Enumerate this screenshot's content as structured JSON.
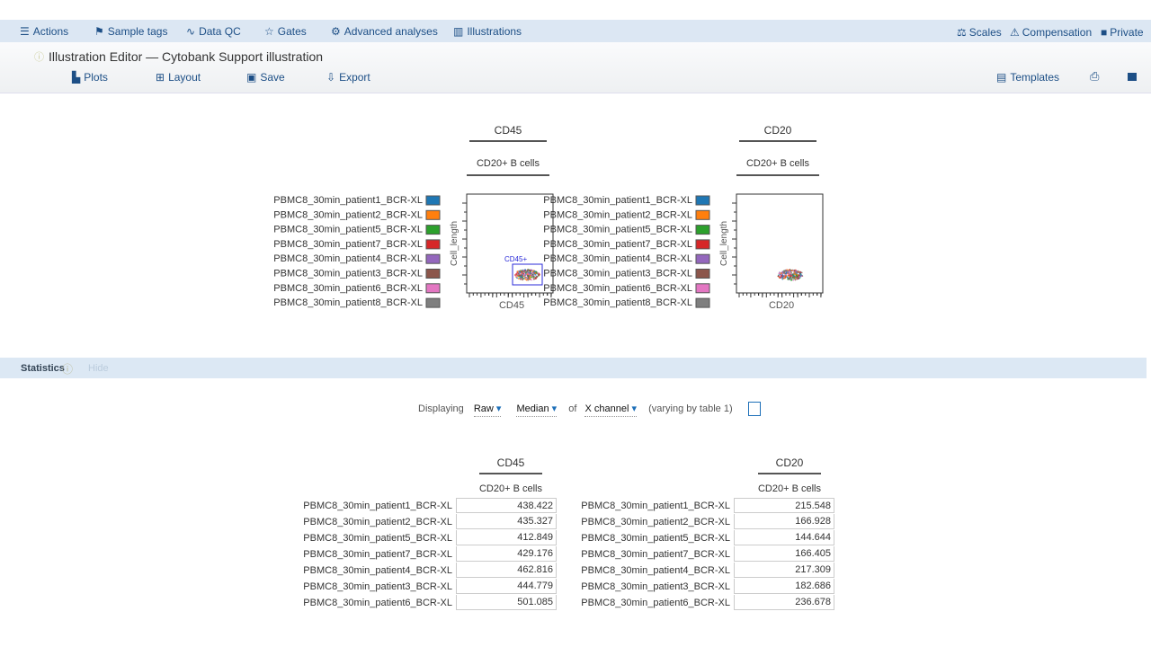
{
  "nav": {
    "items": [
      "Actions",
      "Sample tags",
      "Data QC",
      "Gates",
      "Advanced analyses",
      "Illustrations"
    ],
    "right_items": [
      "Scales",
      "Compensation",
      "Private"
    ]
  },
  "editor": {
    "title": "Illustration Editor — Cytobank Support illustration",
    "toolbar": [
      "Plots",
      "Layout",
      "Save",
      "Export"
    ],
    "templates": "Templates"
  },
  "legend": [
    {
      "label": "PBMC8_30min_patient1_BCR-XL",
      "color": "#1f77b4"
    },
    {
      "label": "PBMC8_30min_patient2_BCR-XL",
      "color": "#ff7f0e"
    },
    {
      "label": "PBMC8_30min_patient5_BCR-XL",
      "color": "#2ca02c"
    },
    {
      "label": "PBMC8_30min_patient7_BCR-XL",
      "color": "#d62728"
    },
    {
      "label": "PBMC8_30min_patient4_BCR-XL",
      "color": "#9467bd"
    },
    {
      "label": "PBMC8_30min_patient3_BCR-XL",
      "color": "#8c564b"
    },
    {
      "label": "PBMC8_30min_patient6_BCR-XL",
      "color": "#e377c2"
    },
    {
      "label": "PBMC8_30min_patient8_BCR-XL",
      "color": "#7f7f7f"
    }
  ],
  "plots": [
    {
      "channel": "CD45",
      "population": "CD20+ B cells",
      "y_label": "Cell_length",
      "x_label": "CD45",
      "gate_label": "CD45+"
    },
    {
      "channel": "CD20",
      "population": "CD20+ B cells",
      "y_label": "Cell_length",
      "x_label": "CD20"
    }
  ],
  "statistics": {
    "title": "Statistics",
    "hide": "Hide",
    "controls": {
      "displaying": "Displaying",
      "mode": "Raw",
      "statistic": "Median",
      "of": "of",
      "channel": "X channel",
      "note": "(varying by table 1)"
    },
    "tables": [
      {
        "channel": "CD45",
        "population": "CD20+ B cells",
        "rows": [
          {
            "sample": "PBMC8_30min_patient1_BCR-XL",
            "value": "438.422"
          },
          {
            "sample": "PBMC8_30min_patient2_BCR-XL",
            "value": "435.327"
          },
          {
            "sample": "PBMC8_30min_patient5_BCR-XL",
            "value": "412.849"
          },
          {
            "sample": "PBMC8_30min_patient7_BCR-XL",
            "value": "429.176"
          },
          {
            "sample": "PBMC8_30min_patient4_BCR-XL",
            "value": "462.816"
          },
          {
            "sample": "PBMC8_30min_patient3_BCR-XL",
            "value": "444.779"
          },
          {
            "sample": "PBMC8_30min_patient6_BCR-XL",
            "value": "501.085"
          }
        ]
      },
      {
        "channel": "CD20",
        "population": "CD20+ B cells",
        "rows": [
          {
            "sample": "PBMC8_30min_patient1_BCR-XL",
            "value": "215.548"
          },
          {
            "sample": "PBMC8_30min_patient2_BCR-XL",
            "value": "166.928"
          },
          {
            "sample": "PBMC8_30min_patient5_BCR-XL",
            "value": "144.644"
          },
          {
            "sample": "PBMC8_30min_patient7_BCR-XL",
            "value": "166.405"
          },
          {
            "sample": "PBMC8_30min_patient4_BCR-XL",
            "value": "217.309"
          },
          {
            "sample": "PBMC8_30min_patient3_BCR-XL",
            "value": "182.686"
          },
          {
            "sample": "PBMC8_30min_patient6_BCR-XL",
            "value": "236.678"
          }
        ]
      }
    ]
  }
}
